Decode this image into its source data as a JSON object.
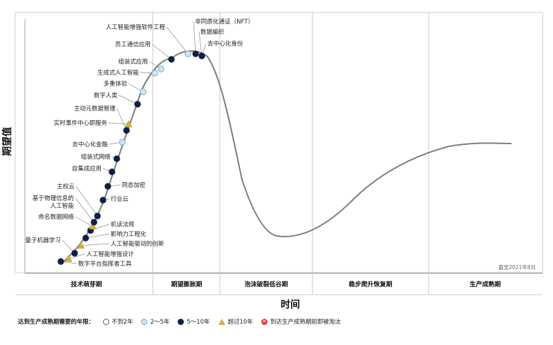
{
  "axes": {
    "y_title": "期望值",
    "x_title": "时间"
  },
  "phases": [
    "技术萌芽期",
    "期望膨胀期",
    "泡沫破裂低谷期",
    "稳步爬升恢复期",
    "生产成熟期"
  ],
  "note": "截至2021年8月",
  "legend": {
    "title": "达到生产成熟期需要的年限：",
    "items": [
      {
        "symbol": "c0",
        "glyph": "",
        "label": "不到2年"
      },
      {
        "symbol": "c1",
        "glyph": "",
        "label": "2～5年"
      },
      {
        "symbol": "c2",
        "glyph": "",
        "label": "5～10年"
      },
      {
        "symbol": "tri",
        "glyph": "",
        "label": "超过10年"
      },
      {
        "symbol": "x",
        "glyph": "✕",
        "label": "到达生产成熟期前即被淘汰"
      }
    ]
  },
  "chart_data": {
    "type": "scatter",
    "title": "",
    "xlabel": "时间",
    "ylabel": "期望值",
    "series_note": "Gartner hype cycle curve with technology markers",
    "points": [
      {
        "label": "数字平台指挥者工具",
        "class": "5-10"
      },
      {
        "label": "人工智能增强设计",
        "class": ">10"
      },
      {
        "label": "量子机器学习",
        "class": "5-10"
      },
      {
        "label": "人工智能驱动的创新",
        "class": ">10"
      },
      {
        "label": "影响力工程化",
        "class": "5-10"
      },
      {
        "label": "机读法规",
        "class": "5-10"
      },
      {
        "label": "命名数据网络",
        "class": ">10"
      },
      {
        "label": "基于物理信息的人工智能",
        "class": "5-10"
      },
      {
        "label": "主权云",
        "class": "5-10"
      },
      {
        "label": "行业云",
        "class": "5-10"
      },
      {
        "label": "同态加密",
        "class": "5-10"
      },
      {
        "label": "自集成应用",
        "class": "5-10"
      },
      {
        "label": "组装式网络",
        "class": "5-10"
      },
      {
        "label": "去中心化金融",
        "class": "2-5"
      },
      {
        "label": "实时事件中心即服务",
        "class": ">10"
      },
      {
        "label": "主动元数据管理",
        "class": "5-10"
      },
      {
        "label": "数字人类",
        "class": "5-10"
      },
      {
        "label": "多重体验",
        "class": "2-5"
      },
      {
        "label": "生成式人工智能",
        "class": "2-5"
      },
      {
        "label": "组装式应用",
        "class": "2-5"
      },
      {
        "label": "员工通信应用",
        "class": "5-10"
      },
      {
        "label": "人工智能增强软件工程",
        "class": "2-5"
      },
      {
        "label": "非同质化通证（NFT）",
        "class": "5-10"
      },
      {
        "label": "数据编织",
        "class": "2-5"
      },
      {
        "label": "去中心化身份",
        "class": "5-10"
      }
    ]
  }
}
